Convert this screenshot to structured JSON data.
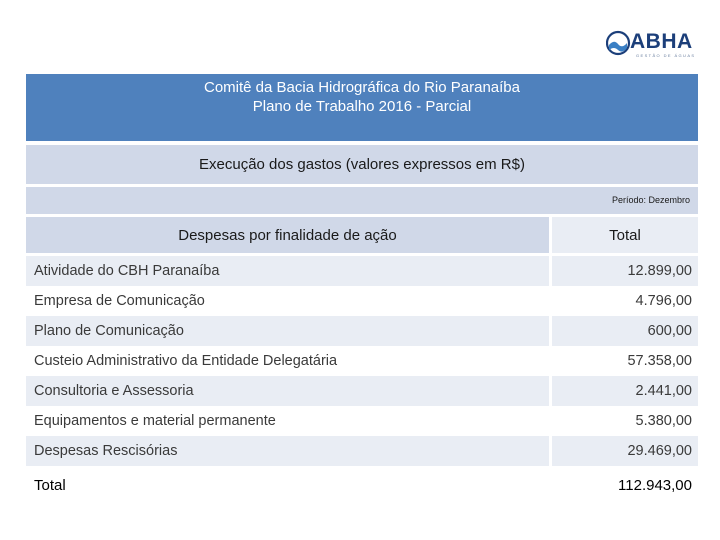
{
  "logo": {
    "name": "ABHA",
    "tagline": "GESTÃO DE ÁGUAS"
  },
  "header": {
    "line1": "Comitê da Bacia Hidrográfica do Rio Paranaíba",
    "line2": "Plano de Trabalho 2016 - Parcial"
  },
  "subheader": "Execução dos gastos (valores expressos em R$)",
  "period": "Período: Dezembro",
  "table": {
    "columns": [
      "Despesas por finalidade de ação",
      "Total"
    ],
    "rows": [
      {
        "label": "Atividade do CBH Paranaíba",
        "value": "12.899,00"
      },
      {
        "label": "Empresa de Comunicação",
        "value": "4.796,00"
      },
      {
        "label": "Plano de Comunicação",
        "value": "600,00"
      },
      {
        "label": "Custeio Administrativo da Entidade Delegatária",
        "value": "57.358,00"
      },
      {
        "label": "Consultoria e Assessoria",
        "value": "2.441,00"
      },
      {
        "label": "Equipamentos e material permanente",
        "value": "5.380,00"
      },
      {
        "label": "Despesas Rescisórias",
        "value": "29.469,00"
      }
    ],
    "total": {
      "label": "Total",
      "value": "112.943,00"
    }
  },
  "colors": {
    "header_blue": "#4f81bd",
    "band_dark": "#d0d8e8",
    "band_light": "#e9edf4"
  }
}
